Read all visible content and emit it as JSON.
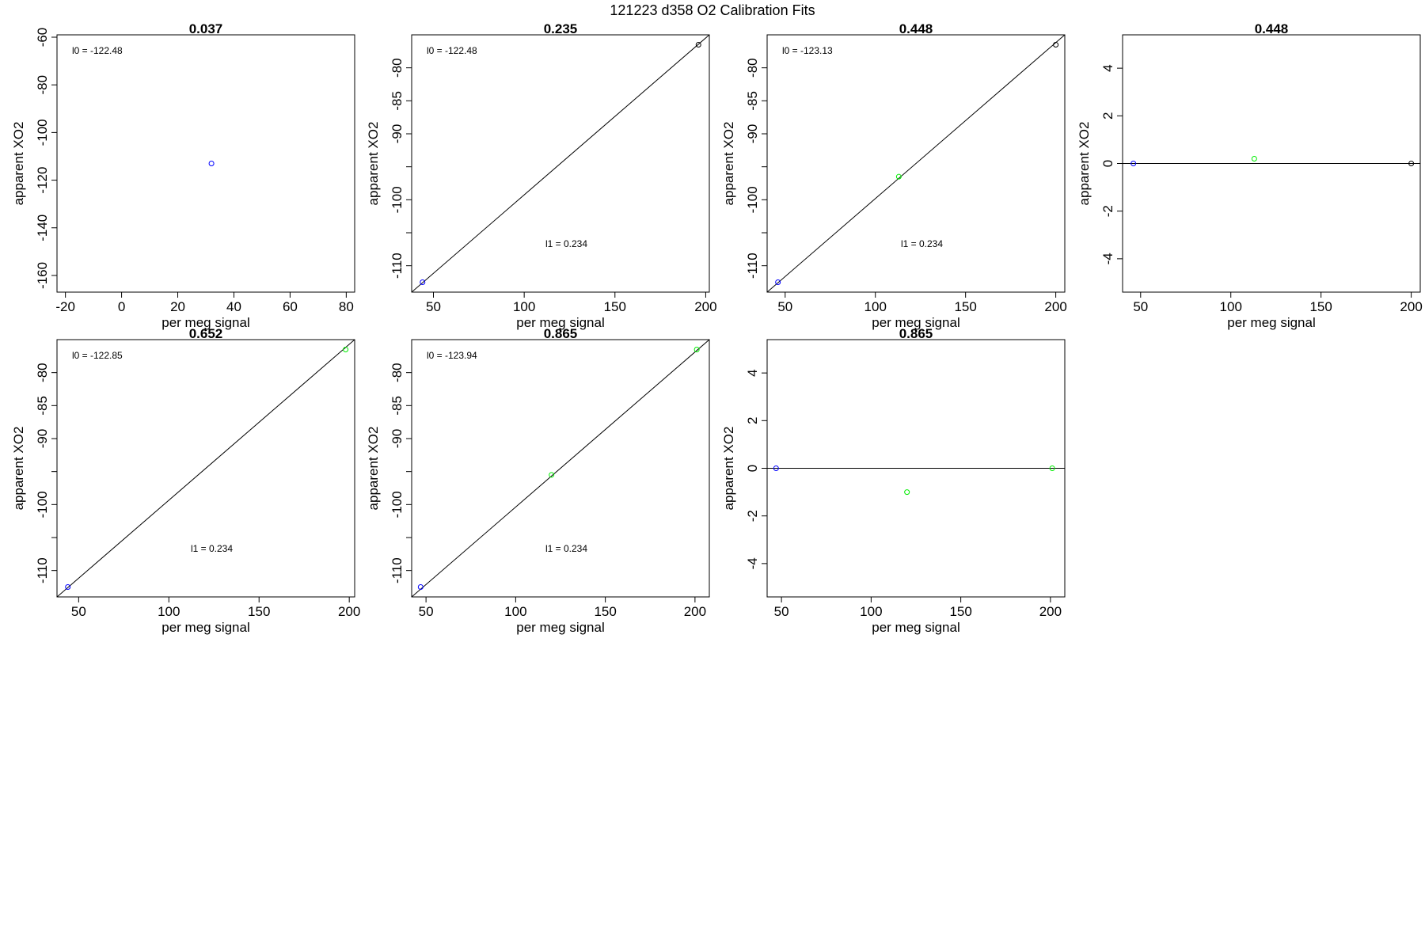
{
  "figure_title": "121223   d358   O2 Calibration Fits",
  "colors": {
    "blue": "#0000ff",
    "green": "#00ee00",
    "black": "#000000"
  },
  "chart_data": [
    {
      "type": "scatter",
      "title": "0.037",
      "xlabel": "per meg signal",
      "ylabel": "apparent XO2",
      "xlim": [
        -23,
        83
      ],
      "ylim": [
        -167,
        -59
      ],
      "xticks": [
        "-20",
        "0",
        "20",
        "40",
        "60",
        "80"
      ],
      "yticks": [
        "-60",
        "-80",
        "-100",
        "-120",
        "-140",
        "-160"
      ],
      "points": [
        {
          "x": 32,
          "y": -113,
          "color": "blue"
        }
      ],
      "fit_line": null,
      "annotations": [
        {
          "text": "l0 =  -122.48",
          "pos": "top-left"
        }
      ]
    },
    {
      "type": "scatter",
      "title": "0.235",
      "xlabel": "per meg signal",
      "ylabel": "apparent XO2",
      "xlim": [
        38,
        202
      ],
      "ylim": [
        -114,
        -75
      ],
      "xticks": [
        "50",
        "100",
        "150",
        "200"
      ],
      "yticks": [
        "-80",
        "-85",
        "-90",
        "",
        "-100",
        "",
        "-110"
      ],
      "ytick_values": [
        -80,
        -85,
        -90,
        -95,
        -100,
        -105,
        -110
      ],
      "points": [
        {
          "x": 44,
          "y": -112.5,
          "color": "blue"
        },
        {
          "x": 196,
          "y": -76.5,
          "color": "black"
        }
      ],
      "fit_line": {
        "from": [
          38,
          -114
        ],
        "to": [
          202,
          -75
        ]
      },
      "annotations": [
        {
          "text": "l0 =  -122.48",
          "pos": "top-left"
        },
        {
          "text": "l1 =  0.234",
          "pos": "lower-middle"
        }
      ]
    },
    {
      "type": "scatter",
      "title": "0.448",
      "xlabel": "per meg signal",
      "ylabel": "apparent XO2",
      "xlim": [
        40,
        205
      ],
      "ylim": [
        -114,
        -75
      ],
      "xticks": [
        "50",
        "100",
        "150",
        "200"
      ],
      "yticks": [
        "-80",
        "-85",
        "-90",
        "",
        "-100",
        "",
        "-110"
      ],
      "ytick_values": [
        -80,
        -85,
        -90,
        -95,
        -100,
        -105,
        -110
      ],
      "points": [
        {
          "x": 46,
          "y": -112.5,
          "color": "blue"
        },
        {
          "x": 113,
          "y": -96.5,
          "color": "green"
        },
        {
          "x": 200,
          "y": -76.5,
          "color": "black"
        }
      ],
      "fit_line": {
        "from": [
          40,
          -114
        ],
        "to": [
          205,
          -75
        ]
      },
      "annotations": [
        {
          "text": "l0 =  -123.13",
          "pos": "top-left"
        },
        {
          "text": "l1 =  0.234",
          "pos": "lower-middle"
        }
      ]
    },
    {
      "type": "scatter",
      "title": "0.448",
      "xlabel": "per meg signal",
      "ylabel": "apparent XO2",
      "xlim": [
        40,
        205
      ],
      "ylim": [
        -5.4,
        5.4
      ],
      "xticks": [
        "50",
        "100",
        "150",
        "200"
      ],
      "yticks": [
        "4",
        "2",
        "0",
        "-2",
        "-4"
      ],
      "ytick_values": [
        4,
        2,
        0,
        -2,
        -4
      ],
      "points": [
        {
          "x": 46,
          "y": 0,
          "color": "blue"
        },
        {
          "x": 113,
          "y": 0.2,
          "color": "green"
        },
        {
          "x": 200,
          "y": 0,
          "color": "black"
        }
      ],
      "hline": 0,
      "annotations": []
    },
    {
      "type": "scatter",
      "title": "0.652",
      "xlabel": "per meg signal",
      "ylabel": "apparent XO2",
      "xlim": [
        38,
        203
      ],
      "ylim": [
        -114,
        -75
      ],
      "xticks": [
        "50",
        "100",
        "150",
        "200"
      ],
      "yticks": [
        "-80",
        "-85",
        "-90",
        "",
        "-100",
        "",
        "-110"
      ],
      "ytick_values": [
        -80,
        -85,
        -90,
        -95,
        -100,
        -105,
        -110
      ],
      "points": [
        {
          "x": 44,
          "y": -112.5,
          "color": "blue"
        },
        {
          "x": 198,
          "y": -76.5,
          "color": "green"
        }
      ],
      "fit_line": {
        "from": [
          38,
          -114
        ],
        "to": [
          203,
          -75
        ]
      },
      "annotations": [
        {
          "text": "l0 =  -122.85",
          "pos": "top-left"
        },
        {
          "text": "l1 =  0.234",
          "pos": "lower-middle"
        }
      ]
    },
    {
      "type": "scatter",
      "title": "0.865",
      "xlabel": "per meg signal",
      "ylabel": "apparent XO2",
      "xlim": [
        42,
        208
      ],
      "ylim": [
        -114,
        -75
      ],
      "xticks": [
        "50",
        "100",
        "150",
        "200"
      ],
      "yticks": [
        "-80",
        "-85",
        "-90",
        "",
        "-100",
        "",
        "-110"
      ],
      "ytick_values": [
        -80,
        -85,
        -90,
        -95,
        -100,
        -105,
        -110
      ],
      "points": [
        {
          "x": 47,
          "y": -112.5,
          "color": "blue"
        },
        {
          "x": 120,
          "y": -95.5,
          "color": "green"
        },
        {
          "x": 201,
          "y": -76.5,
          "color": "green"
        }
      ],
      "fit_line": {
        "from": [
          42,
          -114
        ],
        "to": [
          208,
          -75
        ]
      },
      "annotations": [
        {
          "text": "l0 =  -123.94",
          "pos": "top-left"
        },
        {
          "text": "l1 =  0.234",
          "pos": "lower-middle"
        }
      ]
    },
    {
      "type": "scatter",
      "title": "0.865",
      "xlabel": "per meg signal",
      "ylabel": "apparent XO2",
      "xlim": [
        42,
        208
      ],
      "ylim": [
        -5.4,
        5.4
      ],
      "xticks": [
        "50",
        "100",
        "150",
        "200"
      ],
      "yticks": [
        "4",
        "2",
        "0",
        "-2",
        "-4"
      ],
      "ytick_values": [
        4,
        2,
        0,
        -2,
        -4
      ],
      "points": [
        {
          "x": 47,
          "y": 0,
          "color": "blue"
        },
        {
          "x": 120,
          "y": -1,
          "color": "green"
        },
        {
          "x": 201,
          "y": 0,
          "color": "green"
        }
      ],
      "hline": 0,
      "annotations": []
    }
  ]
}
